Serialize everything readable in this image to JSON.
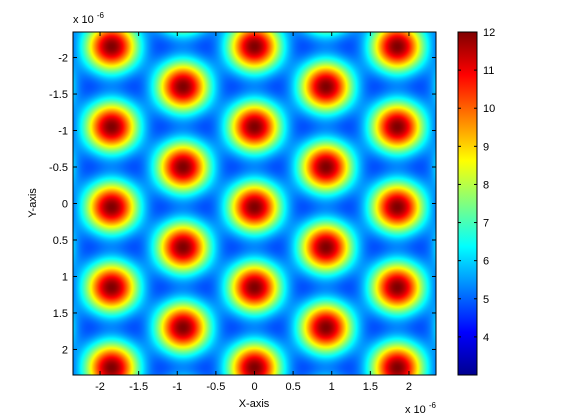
{
  "chart_data": {
    "type": "heatmap",
    "title": "",
    "xlabel": "X-axis",
    "ylabel": "Y-axis",
    "x_exponent_label": "x 10",
    "x_exponent": "-6",
    "y_exponent_label": "x 10",
    "y_exponent": "-6",
    "xlim": [
      -2.35,
      2.35
    ],
    "ylim": [
      2.35,
      -2.35
    ],
    "y_direction": "reversed",
    "x_ticks": [
      -2,
      -1.5,
      -1,
      -0.5,
      0,
      0.5,
      1,
      1.5,
      2
    ],
    "x_tick_labels": [
      "-2",
      "-1.5",
      "-1",
      "-0.5",
      "0",
      "0.5",
      "1",
      "1.5",
      "2"
    ],
    "y_ticks": [
      -2,
      -1.5,
      -1,
      -0.5,
      0,
      0.5,
      1,
      1.5,
      2
    ],
    "y_tick_labels": [
      "-2",
      "-1.5",
      "-1",
      "-0.5",
      "0",
      "0.5",
      "1",
      "1.5",
      "2"
    ],
    "grid": false,
    "colormap": "jet",
    "clim": [
      3,
      12
    ],
    "colorbar": {
      "location": "right",
      "ticks": [
        4,
        5,
        6,
        7,
        8,
        9,
        10,
        11,
        12
      ],
      "tick_labels": [
        "4",
        "5",
        "6",
        "7",
        "8",
        "9",
        "10",
        "11",
        "12"
      ]
    },
    "pattern": {
      "description": "hexagonal lattice of intensity maxima",
      "peak_value": 12,
      "background_value": 3,
      "peak_x": [
        -1.85,
        -0.925,
        0,
        0.925,
        1.85
      ],
      "peak_y": [
        -2.15,
        -1.6,
        -1.07,
        -0.53,
        0,
        0.53,
        1.07,
        1.6,
        2.15
      ]
    }
  }
}
